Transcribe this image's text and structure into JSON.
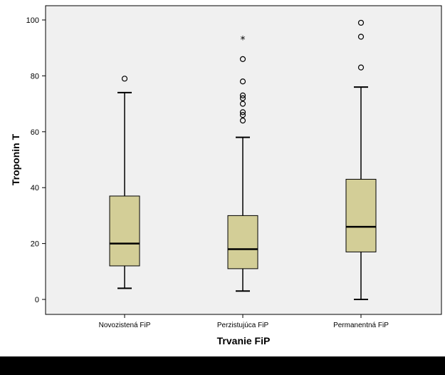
{
  "chart_data": {
    "type": "boxplot",
    "xlabel": "Trvanie FiP",
    "ylabel": "Troponin T",
    "ylim": [
      -5,
      105
    ],
    "yticks": [
      0,
      20,
      40,
      60,
      80,
      100
    ],
    "grid": false,
    "legend": "none",
    "categories": [
      "Novozistená FiP",
      "Perzistujúca FiP",
      "Permanentná FiP"
    ],
    "boxes": [
      {
        "category": "Novozistená FiP",
        "whisker_low": 4,
        "q1": 12,
        "median": 20,
        "q3": 37,
        "whisker_high": 74,
        "outliers": [
          79
        ],
        "extremes": []
      },
      {
        "category": "Perzistujúca FiP",
        "whisker_low": 3,
        "q1": 11,
        "median": 18,
        "q3": 30,
        "whisker_high": 58,
        "outliers": [
          64,
          66,
          67,
          70,
          72,
          73,
          78,
          86
        ],
        "extremes": [
          93
        ]
      },
      {
        "category": "Permanentná FiP",
        "whisker_low": 0,
        "q1": 17,
        "median": 26,
        "q3": 43,
        "whisker_high": 76,
        "outliers": [
          83,
          94,
          99
        ],
        "extremes": []
      }
    ],
    "colors": {
      "plot_background": "#f0f0f0",
      "box_fill": "#d3ce97",
      "stroke": "#000000",
      "page_background": "#ffffff",
      "bottom_band": "#000000"
    }
  }
}
